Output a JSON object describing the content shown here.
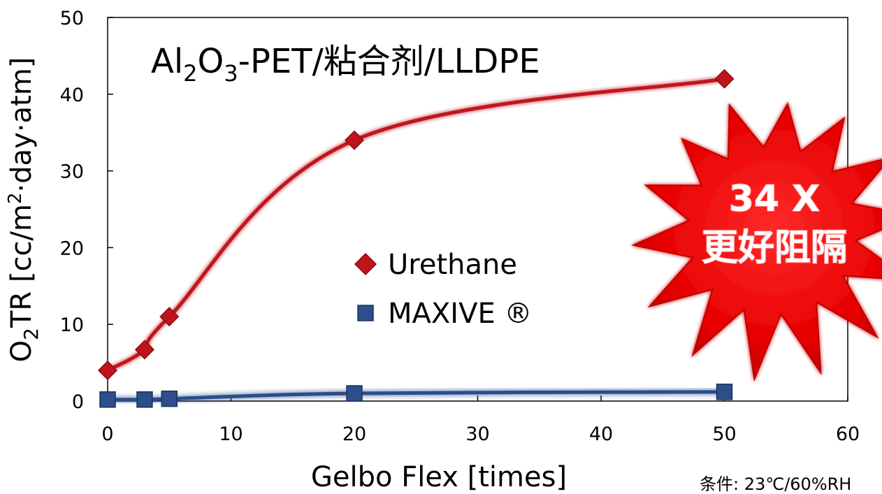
{
  "chart_data": {
    "type": "line",
    "title": {
      "al": "Al",
      "sub2": "2",
      "o": "O",
      "sub3": "3",
      "rest": "-PET/粘合剂/LLDPE"
    },
    "xlabel": "Gelbo Flex [times]",
    "ylabel": {
      "o": "O",
      "sub2": "2",
      "main": "TR [cc/m",
      "sup2": "2",
      "rest": "·day·atm]"
    },
    "xlim": [
      0,
      60
    ],
    "ylim": [
      0,
      50
    ],
    "x_ticks": [
      "0",
      "10",
      "20",
      "30",
      "40",
      "50",
      "60"
    ],
    "y_ticks": [
      "0",
      "10",
      "20",
      "30",
      "40",
      "50"
    ],
    "grid": false,
    "legend_placement": "center",
    "series": [
      {
        "name": "Urethane",
        "color": "#c0141c",
        "marker": "diamond",
        "x": [
          0,
          3,
          5,
          20,
          50
        ],
        "y": [
          4,
          6.7,
          11,
          34,
          42
        ]
      },
      {
        "name": "MAXIVE ®",
        "color": "#2c4e8a",
        "marker": "square",
        "x": [
          0,
          3,
          5,
          20,
          50
        ],
        "y": [
          0.2,
          0.2,
          0.3,
          1,
          1.2
        ]
      }
    ],
    "annotations": {
      "burst_line1": "34 X",
      "burst_line2": "更好阻隔",
      "conditions": "条件: 23℃/60%RH"
    }
  }
}
